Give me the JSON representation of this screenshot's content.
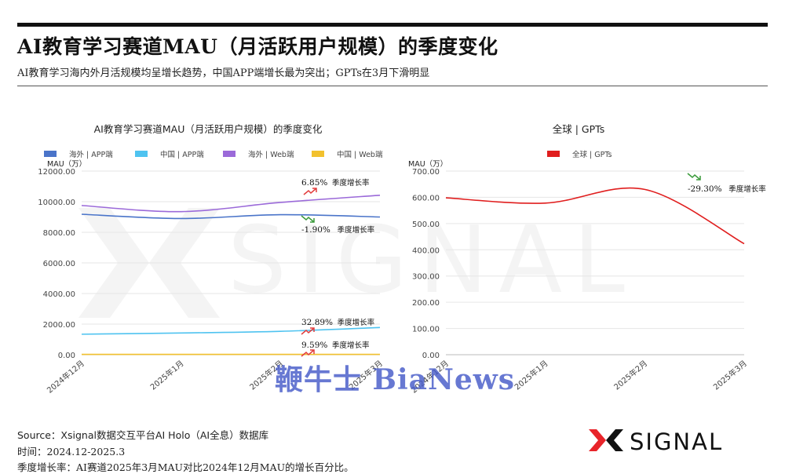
{
  "header": {
    "title": "AI教育学习赛道MAU（月活跃用户规模）的季度变化",
    "subtitle": "AI教育学习海内外月活规模均呈增长趋势，中国APP端增长最为突出；GPTs在3月下滑明显"
  },
  "colors": {
    "overseas_app": "#4a74c9",
    "china_app": "#4fc3f0",
    "overseas_web": "#9b6ad9",
    "china_web": "#f2c12e",
    "gpts": "#e01e1e",
    "up_arrow": "#e33d3d",
    "down_arrow": "#3a9a3a",
    "grid": "#e6e6e6",
    "logo_red": "#e8242a"
  },
  "chart_data": [
    {
      "type": "line",
      "title": "AI教育学习赛道MAU（月活跃用户规模）的季度变化",
      "ylabel": "MAU（万）",
      "ylim": [
        0,
        12000
      ],
      "yticks": [
        "0.00",
        "2000.00",
        "4000.00",
        "6000.00",
        "8000.00",
        "10000.00",
        "12000.00"
      ],
      "categories": [
        "2024年12月",
        "2025年1月",
        "2025年2月",
        "2025年3月"
      ],
      "grid": true,
      "legend_position": "top",
      "series": [
        {
          "name": "海外 | APP端",
          "values": [
            9180,
            8900,
            9150,
            9000
          ],
          "color_key": "overseas_app"
        },
        {
          "name": "中国 | APP端",
          "values": [
            1340,
            1420,
            1530,
            1780
          ],
          "color_key": "china_app"
        },
        {
          "name": "海外 | Web端",
          "values": [
            9750,
            9350,
            9950,
            10420
          ],
          "color_key": "overseas_web"
        },
        {
          "name": "中国 | Web端",
          "values": [
            20,
            20,
            21,
            22
          ],
          "color_key": "china_web"
        }
      ],
      "annotations": [
        {
          "text": "6.85%",
          "label": "季度增长率",
          "direction": "up",
          "at_value": 10420
        },
        {
          "text": "-1.90%",
          "label": "季度增长率",
          "direction": "down",
          "at_value": 9000
        },
        {
          "text": "32.89%",
          "label": "季度增长率",
          "direction": "up",
          "at_value": 1780
        },
        {
          "text": "9.59%",
          "label": "季度增长率",
          "direction": "up",
          "at_value": 22
        }
      ]
    },
    {
      "type": "line",
      "title": "全球 | GPTs",
      "ylabel": "MAU（万）",
      "ylim": [
        0,
        700
      ],
      "yticks": [
        "0.00",
        "100.00",
        "200.00",
        "300.00",
        "400.00",
        "500.00",
        "600.00",
        "700.00"
      ],
      "categories": [
        "2024年12月",
        "2025年1月",
        "2025年2月",
        "2025年3月"
      ],
      "grid": true,
      "legend_position": "top",
      "series": [
        {
          "name": "全球 | GPTs",
          "values": [
            598,
            578,
            630,
            423
          ],
          "color_key": "gpts"
        }
      ],
      "annotations": [
        {
          "text": "-29.30%",
          "label": "季度增长率",
          "direction": "down",
          "at_value": 630
        }
      ]
    }
  ],
  "watermark": {
    "brand": "X SIGNAL",
    "media": "鞭牛士 BiaNews"
  },
  "footer": {
    "source": "Source：Xsignal数据交互平台AI Holo（AI全息）数据库",
    "period": "时间：2024.12-2025.3",
    "note": "季度增长率：AI赛道2025年3月MAU对比2024年12月MAU的增长百分比。"
  },
  "logo": {
    "text": "SIGNAL"
  }
}
